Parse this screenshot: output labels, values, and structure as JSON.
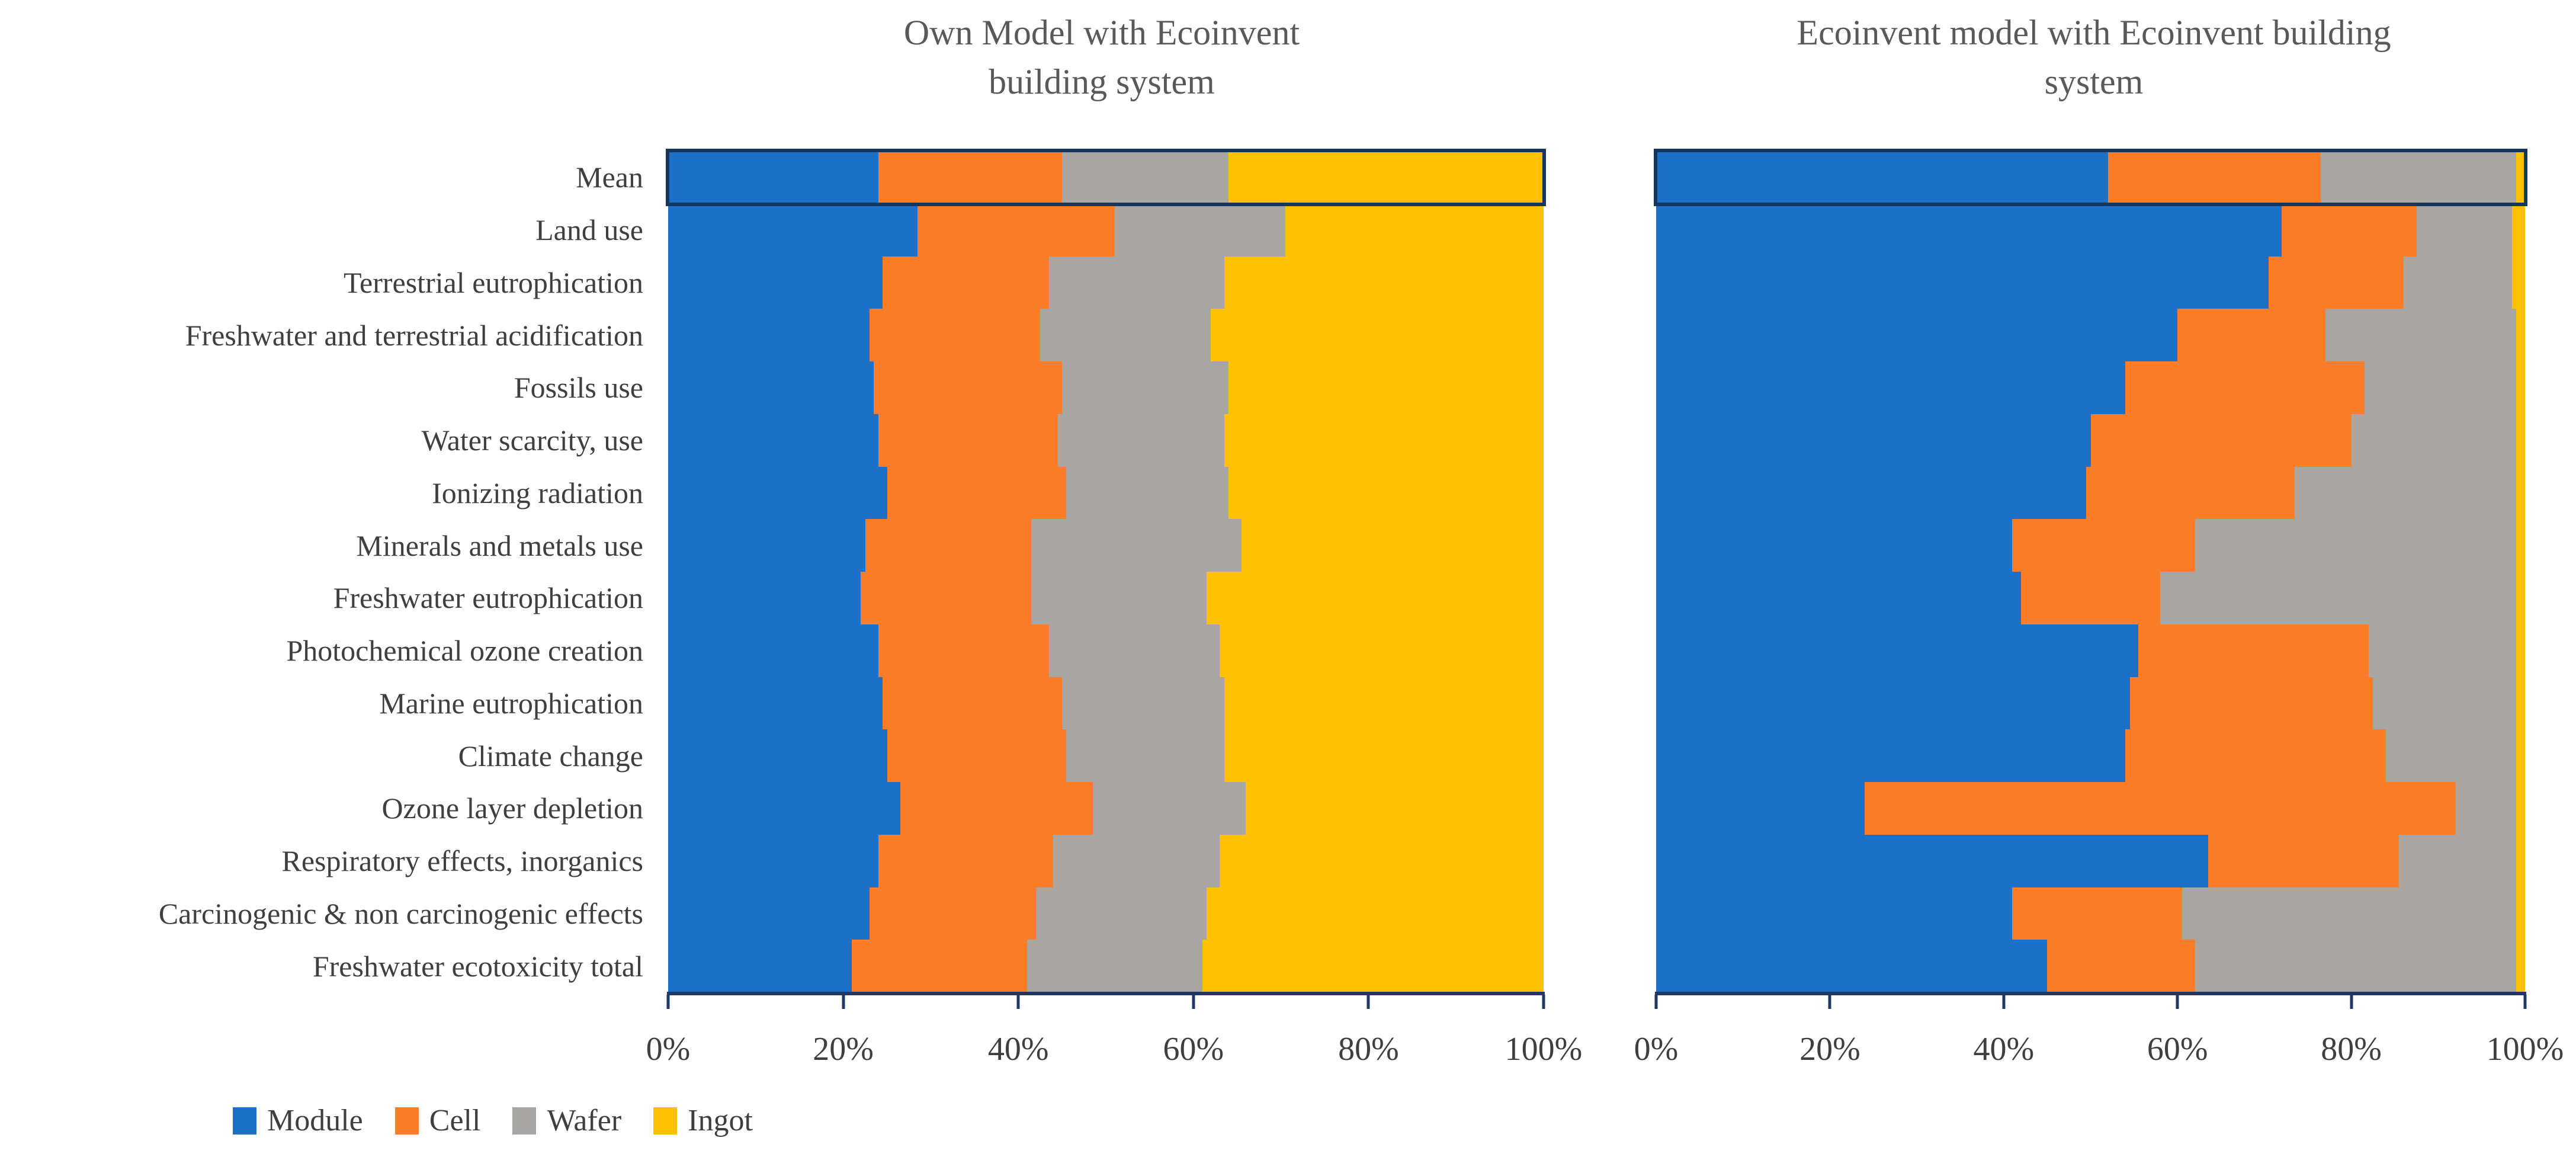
{
  "figure": {
    "left_title_line1": "Own Model with Ecoinvent",
    "left_title_line2": "building system",
    "right_title_line1": "Ecoinvent model with Ecoinvent building",
    "right_title_line2": "system"
  },
  "categories": [
    "Mean",
    "Land use",
    "Terrestrial eutrophication",
    "Freshwater and terrestrial acidification",
    "Fossils use",
    "Water scarcity, use",
    "Ionizing radiation",
    "Minerals and metals use",
    "Freshwater eutrophication",
    "Photochemical ozone creation",
    "Marine eutrophication",
    "Climate change",
    "Ozone layer depletion",
    "Respiratory effects, inorganics",
    "Carcinogenic & non carcinogenic effects",
    "Freshwater ecotoxicity total"
  ],
  "legend": {
    "items": [
      {
        "label": "Module",
        "color": "#1d70c8"
      },
      {
        "label": "Cell",
        "color": "#fb7d29"
      },
      {
        "label": "Wafer",
        "color": "#a7a6a3"
      },
      {
        "label": "Ingot",
        "color": "#ffc103"
      }
    ]
  },
  "colors": {
    "axis": "#1f3864",
    "highlight_border": "#16365c",
    "title_text": "#595959",
    "label_text": "#3f3f3f"
  },
  "chart_data": [
    {
      "type": "bar",
      "orientation": "horizontal",
      "stacked": true,
      "unit": "percent",
      "title": "Own Model with Ecoinvent building system",
      "xlim": [
        0,
        100
      ],
      "x_ticks": [
        "0%",
        "20%",
        "40%",
        "60%",
        "80%",
        "100%"
      ],
      "highlight_category": "Mean",
      "legend_position": "bottom-left",
      "categories": [
        "Mean",
        "Land use",
        "Terrestrial eutrophication",
        "Freshwater and terrestrial acidification",
        "Fossils use",
        "Water scarcity, use",
        "Ionizing radiation",
        "Minerals and metals use",
        "Freshwater eutrophication",
        "Photochemical ozone creation",
        "Marine eutrophication",
        "Climate change",
        "Ozone layer depletion",
        "Respiratory effects, inorganics",
        "Carcinogenic & non carcinogenic effects",
        "Freshwater ecotoxicity total"
      ],
      "series": [
        {
          "name": "Module",
          "values": [
            24,
            28.5,
            24.5,
            23,
            23.5,
            24,
            25,
            22.5,
            22,
            24,
            24.5,
            25,
            26.5,
            24,
            23,
            21
          ]
        },
        {
          "name": "Cell",
          "values": [
            21,
            22.5,
            19,
            19.5,
            21.5,
            20.5,
            20.5,
            19,
            19.5,
            19.5,
            20.5,
            20.5,
            22,
            20,
            19,
            20
          ]
        },
        {
          "name": "Wafer",
          "values": [
            19,
            19.5,
            20,
            19.5,
            19,
            19,
            18.5,
            24,
            20,
            19.5,
            18.5,
            18,
            17.5,
            19,
            19.5,
            20
          ]
        },
        {
          "name": "Ingot",
          "values": [
            36,
            29.5,
            36.5,
            38,
            36,
            36.5,
            36,
            34.5,
            38.5,
            37,
            36.5,
            36.5,
            34,
            37,
            38.5,
            39
          ]
        }
      ]
    },
    {
      "type": "bar",
      "orientation": "horizontal",
      "stacked": true,
      "unit": "percent",
      "title": "Ecoinvent model with Ecoinvent building system",
      "xlim": [
        0,
        100
      ],
      "x_ticks": [
        "0%",
        "20%",
        "40%",
        "60%",
        "80%",
        "100%"
      ],
      "highlight_category": "Mean",
      "categories": [
        "Mean",
        "Land use",
        "Terrestrial eutrophication",
        "Freshwater and terrestrial acidification",
        "Fossils use",
        "Water scarcity, use",
        "Ionizing radiation",
        "Minerals and metals use",
        "Freshwater eutrophication",
        "Photochemical ozone creation",
        "Marine eutrophication",
        "Climate change",
        "Ozone layer depletion",
        "Respiratory effects, inorganics",
        "Carcinogenic & non carcinogenic effects",
        "Freshwater ecotoxicity total"
      ],
      "series": [
        {
          "name": "Module",
          "values": [
            52,
            72,
            70.5,
            60,
            54,
            50,
            49.5,
            41,
            42,
            55.5,
            54.5,
            54,
            24,
            63.5,
            41,
            45
          ]
        },
        {
          "name": "Cell",
          "values": [
            24.5,
            15.5,
            15.5,
            17,
            27.5,
            30,
            24,
            21,
            16,
            26.5,
            28,
            30,
            68,
            22,
            19.5,
            17
          ]
        },
        {
          "name": "Wafer",
          "values": [
            22.5,
            11,
            12.5,
            22,
            17.5,
            19,
            25.5,
            37,
            41,
            17,
            16.5,
            15,
            7,
            13.5,
            38.5,
            37
          ]
        },
        {
          "name": "Ingot",
          "values": [
            1,
            1.5,
            1.5,
            1,
            1,
            1,
            1,
            1,
            1,
            1,
            1,
            1,
            1,
            1,
            1,
            1
          ]
        }
      ]
    }
  ]
}
